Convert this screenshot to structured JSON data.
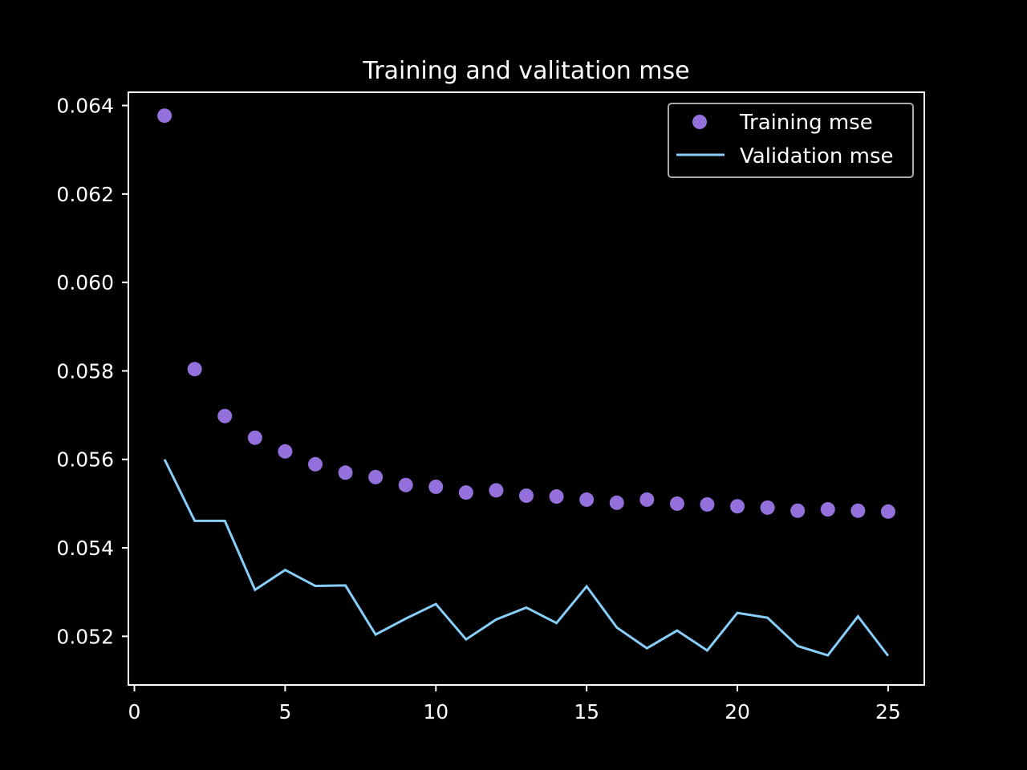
{
  "chart_data": {
    "type": "line",
    "title": "Training and valitation mse",
    "xlabel": "",
    "ylabel": "",
    "xlim": [
      -0.2,
      26.2
    ],
    "ylim": [
      0.0509,
      0.0643
    ],
    "x_ticks": [
      0,
      5,
      10,
      15,
      20,
      25
    ],
    "x_tick_labels": [
      "0",
      "5",
      "10",
      "15",
      "20",
      "25"
    ],
    "y_ticks": [
      0.052,
      0.054,
      0.056,
      0.058,
      0.06,
      0.062,
      0.064
    ],
    "y_tick_labels": [
      "0.052",
      "0.054",
      "0.056",
      "0.058",
      "0.060",
      "0.062",
      "0.064"
    ],
    "grid": false,
    "legend_position": "upper right",
    "x": [
      1,
      2,
      3,
      4,
      5,
      6,
      7,
      8,
      9,
      10,
      11,
      12,
      13,
      14,
      15,
      16,
      17,
      18,
      19,
      20,
      21,
      22,
      23,
      24,
      25
    ],
    "series": [
      {
        "name": "Training mse",
        "style": "markers",
        "color": "#9370DB",
        "values": [
          0.06377,
          0.05804,
          0.05698,
          0.05649,
          0.05618,
          0.05589,
          0.0557,
          0.0556,
          0.05542,
          0.05538,
          0.05525,
          0.0553,
          0.05518,
          0.05516,
          0.05509,
          0.05502,
          0.05509,
          0.055,
          0.05498,
          0.05494,
          0.05491,
          0.05484,
          0.05487,
          0.05484,
          0.05482
        ]
      },
      {
        "name": "Validation mse",
        "style": "line",
        "color": "#87CEFA",
        "values": [
          0.056,
          0.05461,
          0.05461,
          0.05305,
          0.0535,
          0.05314,
          0.05315,
          0.05204,
          0.0524,
          0.05273,
          0.05193,
          0.05238,
          0.05265,
          0.0523,
          0.05313,
          0.0522,
          0.05173,
          0.05213,
          0.05168,
          0.05253,
          0.05242,
          0.05178,
          0.05157,
          0.05245,
          0.05156
        ]
      }
    ],
    "colors": {
      "background": "#000000",
      "foreground": "#ffffff",
      "legend_border": "#aaaaaa"
    }
  }
}
